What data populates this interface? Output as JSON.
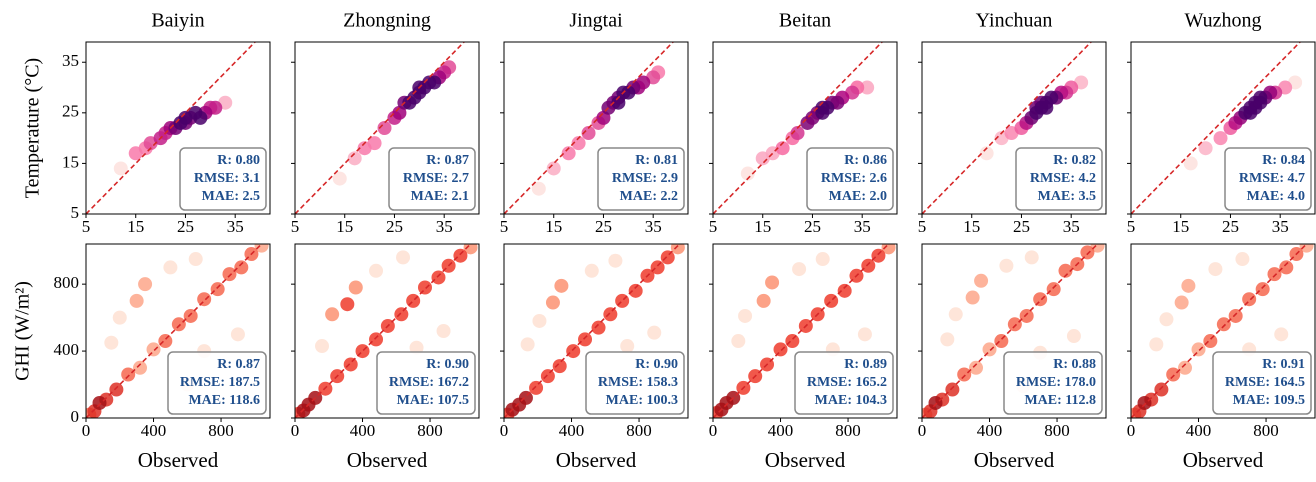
{
  "chart_data": [
    {
      "type": "scatter",
      "title": "Baiyin",
      "ylabel": "Temperature (°C)",
      "xlim": [
        5,
        42
      ],
      "ylim": [
        5,
        39
      ],
      "xticks": [
        5,
        15,
        25,
        35
      ],
      "yticks": [
        5,
        15,
        25,
        35
      ],
      "colors": [
        "#fde0dd",
        "#f768a1",
        "#ae017e",
        "#49006a"
      ],
      "x": [
        12,
        15,
        17,
        18,
        20,
        21,
        22,
        23,
        24,
        25,
        25,
        26,
        27,
        28,
        29,
        30,
        31,
        33
      ],
      "y": [
        14,
        17,
        18,
        19,
        20,
        21,
        22,
        22,
        23,
        23,
        24,
        24,
        25,
        24,
        25,
        26,
        26,
        27
      ],
      "annotations": [
        "R: 0.80",
        "RMSE: 3.1",
        "MAE: 2.5"
      ]
    },
    {
      "type": "scatter",
      "title": "Zhongning",
      "xlim": [
        5,
        42
      ],
      "ylim": [
        5,
        39
      ],
      "xticks": [
        5,
        15,
        25,
        35
      ],
      "yticks": [
        5,
        15,
        25,
        35
      ],
      "colors": [
        "#fde0dd",
        "#f768a1",
        "#ae017e",
        "#49006a"
      ],
      "x": [
        14,
        17,
        19,
        21,
        23,
        25,
        26,
        27,
        28,
        29,
        30,
        30,
        31,
        32,
        33,
        34,
        35,
        36
      ],
      "y": [
        12,
        16,
        18,
        19,
        22,
        24,
        25,
        27,
        27,
        28,
        29,
        30,
        30,
        31,
        31,
        32,
        33,
        34
      ],
      "annotations": [
        "R: 0.87",
        "RMSE: 2.7",
        "MAE: 2.1"
      ]
    },
    {
      "type": "scatter",
      "title": "Jingtai",
      "xlim": [
        5,
        42
      ],
      "ylim": [
        5,
        39
      ],
      "xticks": [
        5,
        15,
        25,
        35
      ],
      "yticks": [
        5,
        15,
        25,
        35
      ],
      "colors": [
        "#fde0dd",
        "#f768a1",
        "#ae017e",
        "#49006a"
      ],
      "x": [
        12,
        15,
        18,
        20,
        22,
        24,
        25,
        26,
        27,
        28,
        28,
        29,
        30,
        31,
        32,
        33,
        35,
        36
      ],
      "y": [
        10,
        14,
        17,
        19,
        21,
        23,
        24,
        26,
        27,
        27,
        28,
        29,
        29,
        30,
        30,
        31,
        32,
        33
      ],
      "annotations": [
        "R: 0.81",
        "RMSE: 2.9",
        "MAE: 2.2"
      ]
    },
    {
      "type": "scatter",
      "title": "Beitan",
      "xlim": [
        5,
        42
      ],
      "ylim": [
        5,
        39
      ],
      "xticks": [
        5,
        15,
        25,
        35
      ],
      "yticks": [
        5,
        15,
        25,
        35
      ],
      "colors": [
        "#fde0dd",
        "#f768a1",
        "#ae017e",
        "#49006a"
      ],
      "x": [
        12,
        15,
        17,
        19,
        21,
        22,
        24,
        25,
        26,
        27,
        27,
        28,
        29,
        30,
        31,
        33,
        34,
        36
      ],
      "y": [
        13,
        16,
        17,
        18,
        20,
        21,
        23,
        24,
        25,
        25,
        26,
        26,
        27,
        27,
        28,
        29,
        30,
        30
      ],
      "annotations": [
        "R: 0.86",
        "RMSE: 2.6",
        "MAE: 2.0"
      ]
    },
    {
      "type": "scatter",
      "title": "Yinchuan",
      "xlim": [
        5,
        42
      ],
      "ylim": [
        5,
        39
      ],
      "xticks": [
        5,
        15,
        25,
        35
      ],
      "yticks": [
        5,
        15,
        25,
        35
      ],
      "colors": [
        "#fde0dd",
        "#f768a1",
        "#ae017e",
        "#49006a"
      ],
      "x": [
        18,
        21,
        23,
        25,
        26,
        27,
        28,
        28,
        29,
        29,
        30,
        30,
        31,
        32,
        33,
        34,
        35,
        37
      ],
      "y": [
        17,
        20,
        21,
        22,
        23,
        24,
        25,
        26,
        26,
        27,
        27,
        26,
        28,
        28,
        29,
        29,
        30,
        31
      ],
      "annotations": [
        "R: 0.82",
        "RMSE: 4.2",
        "MAE: 3.5"
      ]
    },
    {
      "type": "scatter",
      "title": "Wuzhong",
      "xlim": [
        5,
        42
      ],
      "ylim": [
        5,
        39
      ],
      "xticks": [
        5,
        15,
        25,
        35
      ],
      "yticks": [
        5,
        15,
        25,
        35
      ],
      "colors": [
        "#fde0dd",
        "#f768a1",
        "#ae017e",
        "#49006a"
      ],
      "x": [
        17,
        20,
        23,
        25,
        26,
        27,
        28,
        29,
        29,
        30,
        30,
        31,
        31,
        32,
        33,
        34,
        36,
        38
      ],
      "y": [
        15,
        18,
        20,
        22,
        23,
        24,
        25,
        25,
        26,
        26,
        27,
        27,
        28,
        28,
        29,
        29,
        30,
        31
      ],
      "annotations": [
        "R: 0.84",
        "RMSE: 4.7",
        "MAE: 4.0"
      ]
    },
    {
      "type": "scatter",
      "xlabel": "Observed",
      "ylabel": "GHI (W/m²)",
      "xlim": [
        0,
        1090
      ],
      "ylim": [
        0,
        1040
      ],
      "xticks": [
        0,
        400,
        800
      ],
      "yticks": [
        0,
        400,
        800
      ],
      "colors": [
        "#fee0d2",
        "#fc9272",
        "#ef3b2c",
        "#a50f15"
      ],
      "x": [
        20,
        50,
        80,
        120,
        180,
        250,
        320,
        400,
        470,
        550,
        620,
        700,
        780,
        850,
        920,
        980,
        1040,
        200,
        350,
        500,
        650,
        150,
        300,
        700,
        900,
        600
      ],
      "y": [
        20,
        40,
        90,
        110,
        170,
        260,
        300,
        410,
        460,
        560,
        610,
        710,
        770,
        860,
        900,
        980,
        1030,
        600,
        800,
        900,
        950,
        450,
        700,
        400,
        500,
        200
      ],
      "annotations": [
        "R: 0.87",
        "RMSE: 187.5",
        "MAE: 118.6"
      ]
    },
    {
      "type": "scatter",
      "xlabel": "Observed",
      "xlim": [
        0,
        1090
      ],
      "ylim": [
        0,
        1040
      ],
      "xticks": [
        0,
        400,
        800
      ],
      "yticks": [
        0,
        400,
        800
      ],
      "colors": [
        "#fee0d2",
        "#fc9272",
        "#ef3b2c",
        "#a50f15"
      ],
      "x": [
        20,
        50,
        80,
        120,
        180,
        250,
        330,
        400,
        480,
        550,
        630,
        700,
        770,
        850,
        910,
        980,
        1040,
        220,
        360,
        480,
        640,
        160,
        310,
        720,
        880,
        590
      ],
      "y": [
        25,
        45,
        80,
        120,
        175,
        250,
        320,
        400,
        470,
        550,
        620,
        700,
        780,
        840,
        910,
        970,
        1020,
        620,
        780,
        880,
        960,
        430,
        680,
        420,
        520,
        220
      ],
      "annotations": [
        "R: 0.90",
        "RMSE: 167.2",
        "MAE: 107.5"
      ]
    },
    {
      "type": "scatter",
      "xlabel": "Observed",
      "xlim": [
        0,
        1090
      ],
      "ylim": [
        0,
        1040
      ],
      "xticks": [
        0,
        400,
        800
      ],
      "yticks": [
        0,
        400,
        800
      ],
      "colors": [
        "#fee0d2",
        "#fc9272",
        "#ef3b2c",
        "#a50f15"
      ],
      "x": [
        20,
        50,
        90,
        130,
        190,
        260,
        330,
        410,
        480,
        560,
        630,
        700,
        780,
        850,
        910,
        970,
        1030,
        210,
        340,
        520,
        660,
        140,
        290,
        730,
        890,
        610
      ],
      "y": [
        20,
        50,
        80,
        120,
        180,
        250,
        310,
        400,
        470,
        540,
        620,
        700,
        760,
        850,
        900,
        960,
        1020,
        580,
        790,
        880,
        940,
        440,
        690,
        430,
        510,
        230
      ],
      "annotations": [
        "R: 0.90",
        "RMSE: 158.3",
        "MAE: 100.3"
      ]
    },
    {
      "type": "scatter",
      "xlabel": "Observed",
      "xlim": [
        0,
        1090
      ],
      "ylim": [
        0,
        1040
      ],
      "xticks": [
        0,
        400,
        800
      ],
      "yticks": [
        0,
        400,
        800
      ],
      "colors": [
        "#fee0d2",
        "#fc9272",
        "#ef3b2c",
        "#a50f15"
      ],
      "x": [
        20,
        50,
        80,
        120,
        180,
        250,
        320,
        400,
        470,
        550,
        620,
        700,
        780,
        850,
        920,
        980,
        1040,
        190,
        350,
        510,
        650,
        150,
        300,
        710,
        900,
        600
      ],
      "y": [
        30,
        50,
        90,
        120,
        180,
        250,
        320,
        410,
        460,
        550,
        620,
        700,
        760,
        850,
        910,
        970,
        1020,
        610,
        810,
        890,
        950,
        460,
        700,
        410,
        500,
        210
      ],
      "annotations": [
        "R: 0.89",
        "RMSE: 165.2",
        "MAE: 104.3"
      ]
    },
    {
      "type": "scatter",
      "xlabel": "Observed",
      "xlim": [
        0,
        1090
      ],
      "ylim": [
        0,
        1040
      ],
      "xticks": [
        0,
        400,
        800
      ],
      "yticks": [
        0,
        400,
        800
      ],
      "colors": [
        "#fee0d2",
        "#fc9272",
        "#ef3b2c",
        "#a50f15"
      ],
      "x": [
        20,
        50,
        80,
        120,
        180,
        250,
        320,
        400,
        470,
        550,
        620,
        700,
        780,
        850,
        920,
        980,
        1040,
        200,
        350,
        500,
        650,
        150,
        300,
        700,
        900,
        600
      ],
      "y": [
        20,
        40,
        90,
        110,
        170,
        260,
        300,
        410,
        460,
        560,
        610,
        710,
        770,
        880,
        920,
        990,
        1030,
        620,
        820,
        910,
        960,
        470,
        720,
        390,
        490,
        190
      ],
      "annotations": [
        "R: 0.88",
        "RMSE: 178.0",
        "MAE: 112.8"
      ]
    },
    {
      "type": "scatter",
      "xlabel": "Observed",
      "xlim": [
        0,
        1090
      ],
      "ylim": [
        0,
        1040
      ],
      "xticks": [
        0,
        400,
        800
      ],
      "yticks": [
        0,
        400,
        800
      ],
      "colors": [
        "#fee0d2",
        "#fc9272",
        "#ef3b2c",
        "#a50f15"
      ],
      "x": [
        20,
        50,
        80,
        120,
        180,
        250,
        320,
        400,
        470,
        550,
        620,
        700,
        780,
        850,
        920,
        980,
        1040,
        210,
        340,
        500,
        660,
        150,
        300,
        700,
        890,
        610
      ],
      "y": [
        20,
        40,
        90,
        110,
        170,
        260,
        300,
        410,
        460,
        560,
        610,
        710,
        770,
        860,
        900,
        980,
        1030,
        590,
        790,
        890,
        950,
        440,
        690,
        410,
        500,
        210
      ],
      "annotations": [
        "R: 0.91",
        "RMSE: 164.5",
        "MAE: 109.5"
      ]
    }
  ]
}
